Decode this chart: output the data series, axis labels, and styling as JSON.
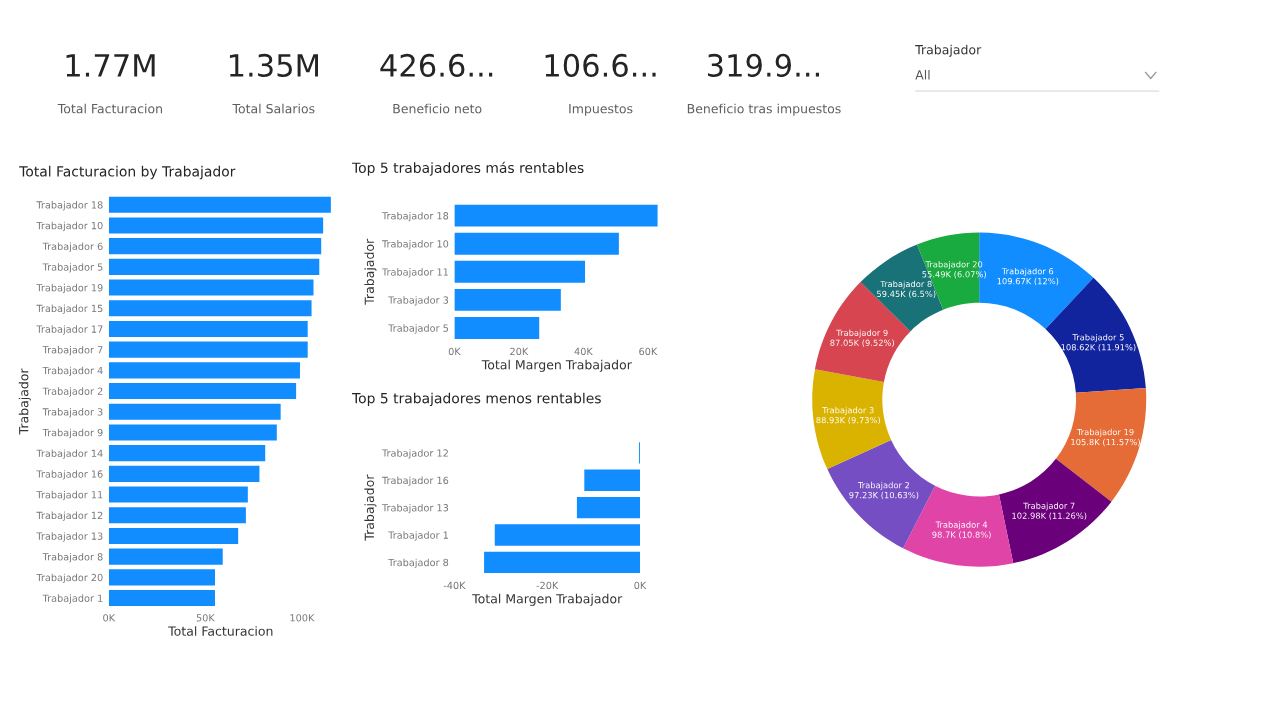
{
  "chart_data": [
    {
      "type": "other",
      "annotations": [
        "1.77M",
        "Total Facturacion",
        "1.35M",
        "Total Salarios",
        "426.6...",
        "Beneficio neto",
        "106.6...",
        "Impuestos",
        "319.9...",
        "Beneficio tras impuestos"
      ]
    },
    {
      "type": "other",
      "title": "Trabajador",
      "annotations": [
        "All"
      ]
    },
    {
      "type": "bar",
      "orientation": "horizontal",
      "title": "Total Facturacion by Trabajador",
      "xlabel": "Total Facturacion",
      "ylabel": "Trabajador",
      "categories": [
        "Trabajador 18",
        "Trabajador 10",
        "Trabajador 6",
        "Trabajador 5",
        "Trabajador 19",
        "Trabajador 15",
        "Trabajador 17",
        "Trabajador 7",
        "Trabajador 4",
        "Trabajador 2",
        "Trabajador 3",
        "Trabajador 9",
        "Trabajador 14",
        "Trabajador 16",
        "Trabajador 11",
        "Trabajador 12",
        "Trabajador 13",
        "Trabajador 8",
        "Trabajador 20",
        "Trabajador 1"
      ],
      "values": [
        115,
        111,
        110,
        109,
        106,
        105,
        103,
        103,
        99,
        97,
        89,
        87,
        81,
        78,
        72,
        71,
        67,
        59,
        55,
        55
      ],
      "color": "#118dff",
      "xlim": [
        0,
        116
      ],
      "xticks": [
        {
          "value": 0,
          "label": "0K"
        },
        {
          "value": 50,
          "label": "50K"
        },
        {
          "value": 100,
          "label": "100K"
        }
      ]
    },
    {
      "type": "bar",
      "orientation": "horizontal",
      "title": "Top 5 trabajadores más rentables",
      "xlabel": "Total Margen Trabajador",
      "ylabel": "Trabajador",
      "categories": [
        "Trabajador 18",
        "Trabajador 10",
        "Trabajador 11",
        "Trabajador 3",
        "Trabajador 5"
      ],
      "values": [
        63,
        51,
        40.5,
        33,
        26.3
      ],
      "color": "#118dff",
      "xlim": [
        0,
        63.5
      ],
      "xticks": [
        {
          "value": 0,
          "label": "0K"
        },
        {
          "value": 20,
          "label": "20K"
        },
        {
          "value": 40,
          "label": "40K"
        },
        {
          "value": 60,
          "label": "60K"
        }
      ]
    },
    {
      "type": "bar",
      "orientation": "horizontal",
      "title": "Top 5 trabajadores menos rentables",
      "xlabel": "Total Margen Trabajador",
      "ylabel": "Trabajador",
      "categories": [
        "Trabajador 12",
        "Trabajador 16",
        "Trabajador 13",
        "Trabajador 1",
        "Trabajador 8"
      ],
      "values": [
        -0.2,
        -12,
        -13.6,
        -31.3,
        -33.6
      ],
      "color": "#118dff",
      "xlim": [
        -40,
        0
      ],
      "xticks": [
        {
          "value": -40,
          "label": "-40K"
        },
        {
          "value": -20,
          "label": "-20K"
        },
        {
          "value": 0,
          "label": "0K"
        }
      ]
    },
    {
      "type": "donut",
      "categories": [
        "Trabajador 6",
        "Trabajador 5",
        "Trabajador 19",
        "Trabajador 7",
        "Trabajador 4",
        "Trabajador 2",
        "Trabajador 3",
        "Trabajador 9",
        "Trabajador 8",
        "Trabajador 20"
      ],
      "values": [
        109670,
        108620,
        105800,
        102980,
        98700,
        97230,
        88930,
        87050,
        59450,
        55490
      ],
      "value_labels": [
        "109.67K (12%)",
        "108.62K (11.91%)",
        "105.8K (11.57%)",
        "102.98K (11.26%)",
        "98.7K (10.8%)",
        "97.23K (10.63%)",
        "88.93K (9.73%)",
        "87.05K (9.52%)",
        "59.45K (6.5%)",
        "55.49K (6.07%)"
      ],
      "colors": [
        "#118dff",
        "#12239e",
        "#e66c37",
        "#6b007b",
        "#e044a7",
        "#744ec2",
        "#d9b300",
        "#d64550",
        "#197278",
        "#1aab40"
      ]
    }
  ]
}
